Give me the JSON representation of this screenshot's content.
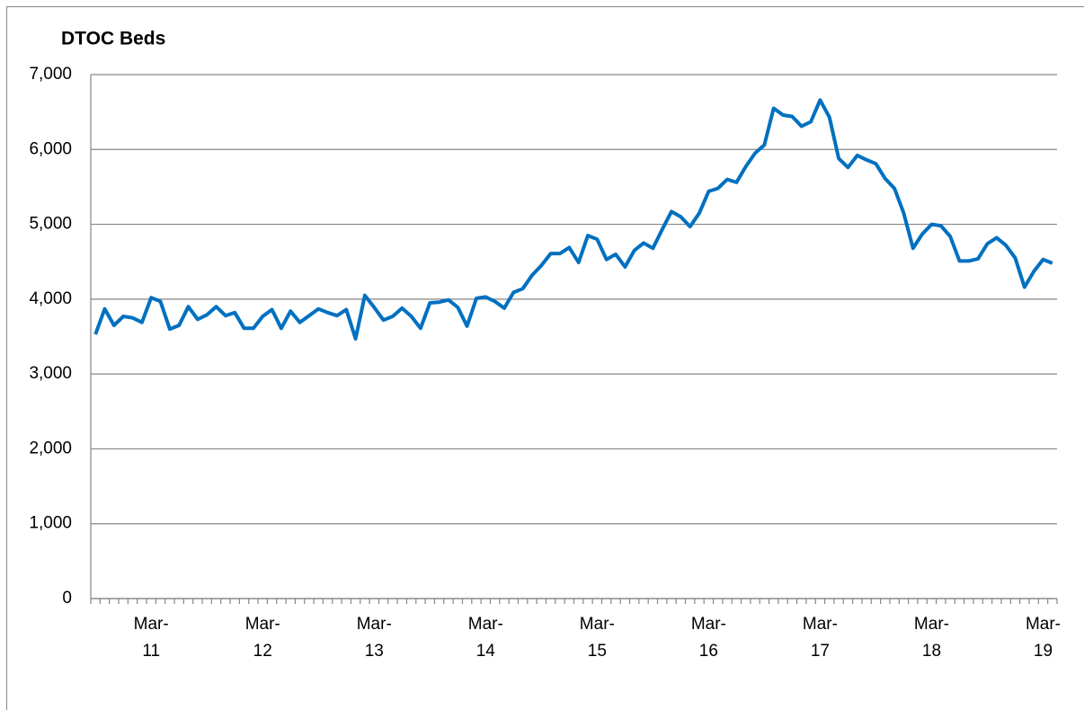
{
  "chart_data": {
    "type": "line",
    "title": "DTOC Beds",
    "categories": [
      null,
      null,
      null,
      null,
      null,
      null,
      "Mar-11",
      null,
      null,
      null,
      null,
      null,
      null,
      null,
      null,
      null,
      null,
      null,
      "Mar-12",
      null,
      null,
      null,
      null,
      null,
      null,
      null,
      null,
      null,
      null,
      null,
      "Mar-13",
      null,
      null,
      null,
      null,
      null,
      null,
      null,
      null,
      null,
      null,
      null,
      "Mar-14",
      null,
      null,
      null,
      null,
      null,
      null,
      null,
      null,
      null,
      null,
      null,
      "Mar-15",
      null,
      null,
      null,
      null,
      null,
      null,
      null,
      null,
      null,
      null,
      null,
      "Mar-16",
      null,
      null,
      null,
      null,
      null,
      null,
      null,
      null,
      null,
      null,
      null,
      "Mar-17",
      null,
      null,
      null,
      null,
      null,
      null,
      null,
      null,
      null,
      null,
      null,
      "Mar-18",
      null,
      null,
      null,
      null,
      null,
      null,
      null,
      null,
      null,
      null,
      null,
      "Mar-19",
      null
    ],
    "series": [
      {
        "name": "DTOC Beds",
        "color": "#0070c0",
        "values": [
          3530,
          3870,
          3650,
          3770,
          3750,
          3690,
          4020,
          3970,
          3600,
          3650,
          3900,
          3730,
          3790,
          3900,
          3780,
          3820,
          3610,
          3610,
          3770,
          3860,
          3610,
          3840,
          3690,
          3780,
          3870,
          3820,
          3780,
          3860,
          3470,
          4050,
          3890,
          3720,
          3770,
          3880,
          3770,
          3610,
          3950,
          3960,
          3990,
          3890,
          3640,
          4010,
          4030,
          3970,
          3880,
          4090,
          4140,
          4320,
          4450,
          4610,
          4610,
          4690,
          4490,
          4850,
          4800,
          4530,
          4600,
          4430,
          4650,
          4750,
          4680,
          4930,
          5170,
          5100,
          4970,
          5150,
          5440,
          5480,
          5600,
          5560,
          5770,
          5950,
          6060,
          6550,
          6460,
          6440,
          6310,
          6370,
          6660,
          6430,
          5880,
          5760,
          5920,
          5860,
          5810,
          5610,
          5480,
          5150,
          4680,
          4870,
          5000,
          4980,
          4840,
          4510,
          4510,
          4540,
          4740,
          4820,
          4720,
          4550,
          4160,
          4370,
          4530,
          4480
        ]
      }
    ],
    "ylim": [
      0,
      7000
    ],
    "yticks": [
      0,
      {
        "value": 1000,
        "label": "1,000"
      },
      {
        "value": 2000,
        "label": "2,000"
      },
      {
        "value": 3000,
        "label": "3,000"
      },
      {
        "value": 4000,
        "label": "4,000"
      },
      {
        "value": 5000,
        "label": "5,000"
      },
      {
        "value": 6000,
        "label": "6,000"
      },
      {
        "value": 7000,
        "label": "7,000"
      }
    ],
    "grid": true
  }
}
